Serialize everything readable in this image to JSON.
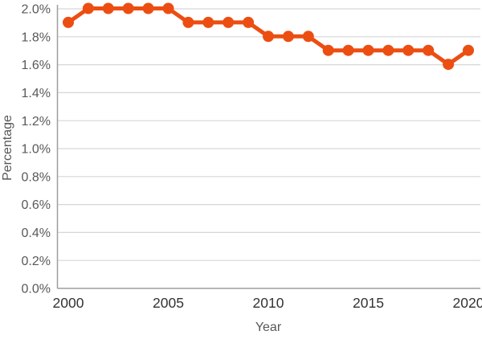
{
  "chart_data": {
    "type": "line",
    "title": "",
    "xlabel": "Year",
    "ylabel": "Percentage",
    "x": [
      2000,
      2001,
      2002,
      2003,
      2004,
      2005,
      2006,
      2007,
      2008,
      2009,
      2010,
      2011,
      2012,
      2013,
      2014,
      2015,
      2016,
      2017,
      2018,
      2019,
      2020
    ],
    "series": [
      {
        "name": "Percentage",
        "values": [
          1.9,
          2.0,
          2.0,
          2.0,
          2.0,
          2.0,
          1.9,
          1.9,
          1.9,
          1.9,
          1.8,
          1.8,
          1.8,
          1.7,
          1.7,
          1.7,
          1.7,
          1.7,
          1.7,
          1.6,
          1.7
        ]
      }
    ],
    "ylim": [
      0.0,
      2.0
    ],
    "y_tick_values": [
      0.0,
      0.2,
      0.4,
      0.6,
      0.8,
      1.0,
      1.2,
      1.4,
      1.6,
      1.8,
      2.0
    ],
    "y_tick_labels": [
      "0.0%",
      "0.2%",
      "0.4%",
      "0.6%",
      "0.8%",
      "1.0%",
      "1.2%",
      "1.4%",
      "1.6%",
      "1.8%",
      "2.0%"
    ],
    "x_tick_values": [
      2000,
      2005,
      2010,
      2015,
      2020
    ],
    "x_tick_labels": [
      "2000",
      "2005",
      "2010",
      "2015",
      "2020"
    ],
    "grid": true,
    "legend": "none",
    "marker": "circle"
  },
  "style": {
    "line_color": "#ec4e12",
    "marker_color": "#ec4e12",
    "grid_color": "#d6d6d6",
    "axis_line_color": "#9e9e9e",
    "y_tick_color": "#58595b",
    "x_tick_color": "#333333",
    "axis_title_color": "#575757",
    "background": "#ffffff"
  }
}
